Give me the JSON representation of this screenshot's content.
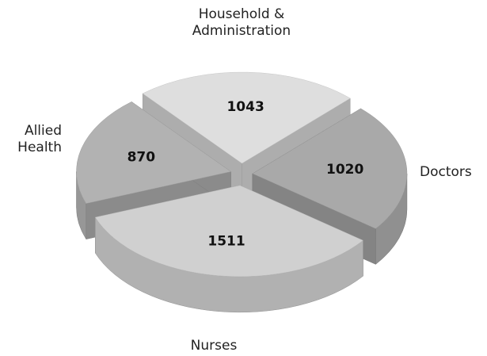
{
  "chart_data": {
    "type": "pie",
    "categories": [
      "Household & Administration",
      "Doctors",
      "Nurses",
      "Allied Health"
    ],
    "values": [
      1043,
      1020,
      1511,
      870
    ],
    "colors": [
      "#dedede",
      "#a9a9a9",
      "#d0d0d0",
      "#b2b2b2"
    ]
  }
}
